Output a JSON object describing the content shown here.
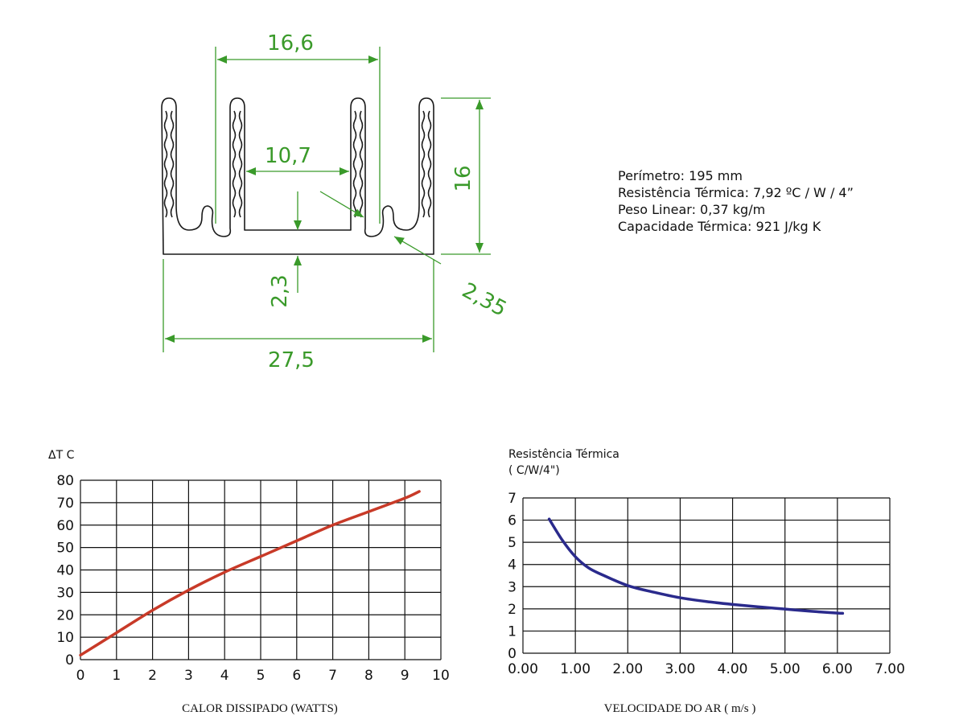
{
  "drawing": {
    "dim_top": "16,6",
    "dim_inner": "10,7",
    "dim_height": "16",
    "dim_base": "2,3",
    "dim_fin": "2,35",
    "dim_width": "27,5",
    "line_color": "#3a9a2a"
  },
  "specs": [
    "Perímetro: 195 mm",
    "Resistência Térmica:  7,92 ºC / W / 4”",
    "Peso Linear:  0,37 kg/m",
    "Capacidade Térmica:  921 J/kg K"
  ],
  "chart_data": [
    {
      "type": "line",
      "ylabel": "ΔT  C",
      "xlabel": "CALOR DISSIPADO (WATTS)",
      "xlim": [
        0,
        10
      ],
      "ylim": [
        0,
        80
      ],
      "xticks": [
        "0",
        "1",
        "2",
        "3",
        "4",
        "5",
        "6",
        "7",
        "8",
        "9",
        "10"
      ],
      "yticks": [
        "0",
        "10",
        "20",
        "30",
        "40",
        "50",
        "60",
        "70",
        "80"
      ],
      "grid": true,
      "color": "#c83a28",
      "x": [
        0,
        1,
        2,
        3,
        4,
        5,
        6,
        7,
        8,
        9,
        9.4
      ],
      "y": [
        2,
        12,
        22,
        31,
        39,
        46,
        53,
        60,
        66,
        72,
        75
      ]
    },
    {
      "type": "line",
      "ylabel_line1": "Resistência Térmica",
      "ylabel_line2": "( C/W/4\")",
      "xlabel": "VELOCIDADE DO AR ( m/s )",
      "xlim": [
        0,
        7
      ],
      "ylim": [
        0,
        7
      ],
      "xticks": [
        "0.00",
        "1.00",
        "2.00",
        "3.00",
        "4.00",
        "5.00",
        "6.00",
        "7.00"
      ],
      "yticks": [
        "0",
        "1",
        "2",
        "3",
        "4",
        "5",
        "6",
        "7"
      ],
      "grid": true,
      "color": "#2a2a8c",
      "x": [
        0.5,
        0.75,
        1.0,
        1.25,
        1.5,
        2.0,
        2.5,
        3.0,
        3.5,
        4.0,
        4.5,
        5.0,
        5.5,
        6.0,
        6.1
      ],
      "y": [
        6.05,
        5.1,
        4.35,
        3.85,
        3.55,
        3.05,
        2.75,
        2.5,
        2.33,
        2.2,
        2.09,
        1.99,
        1.89,
        1.81,
        1.8
      ]
    }
  ]
}
